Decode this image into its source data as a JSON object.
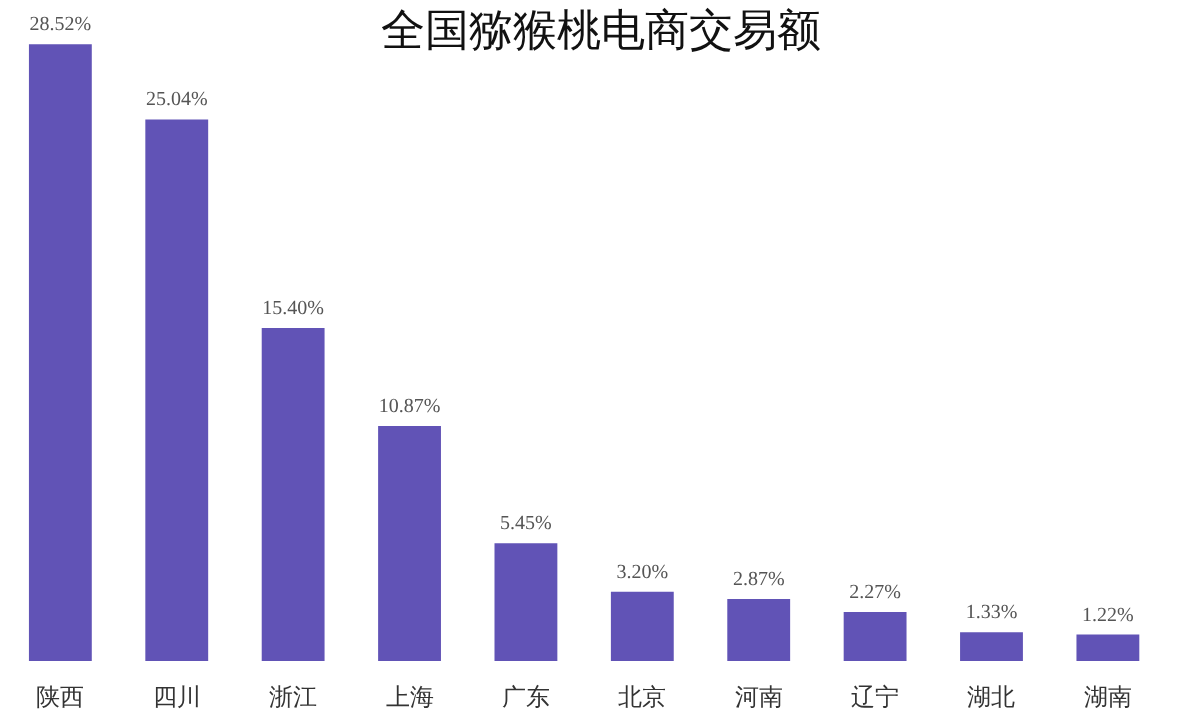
{
  "chart_data": {
    "type": "bar",
    "title": "全国猕猴桃电商交易额",
    "categories": [
      "陕西",
      "四川",
      "浙江",
      "上海",
      "广东",
      "北京",
      "河南",
      "辽宁",
      "湖北",
      "湖南"
    ],
    "values": [
      28.52,
      25.04,
      15.4,
      10.87,
      5.45,
      3.2,
      2.87,
      2.27,
      1.33,
      1.22
    ],
    "value_labels": [
      "28.52%",
      "25.04%",
      "15.40%",
      "10.87%",
      "5.45%",
      "3.20%",
      "2.87%",
      "2.27%",
      "1.33%",
      "1.22%"
    ],
    "color": "#6153b6",
    "grid": false
  }
}
